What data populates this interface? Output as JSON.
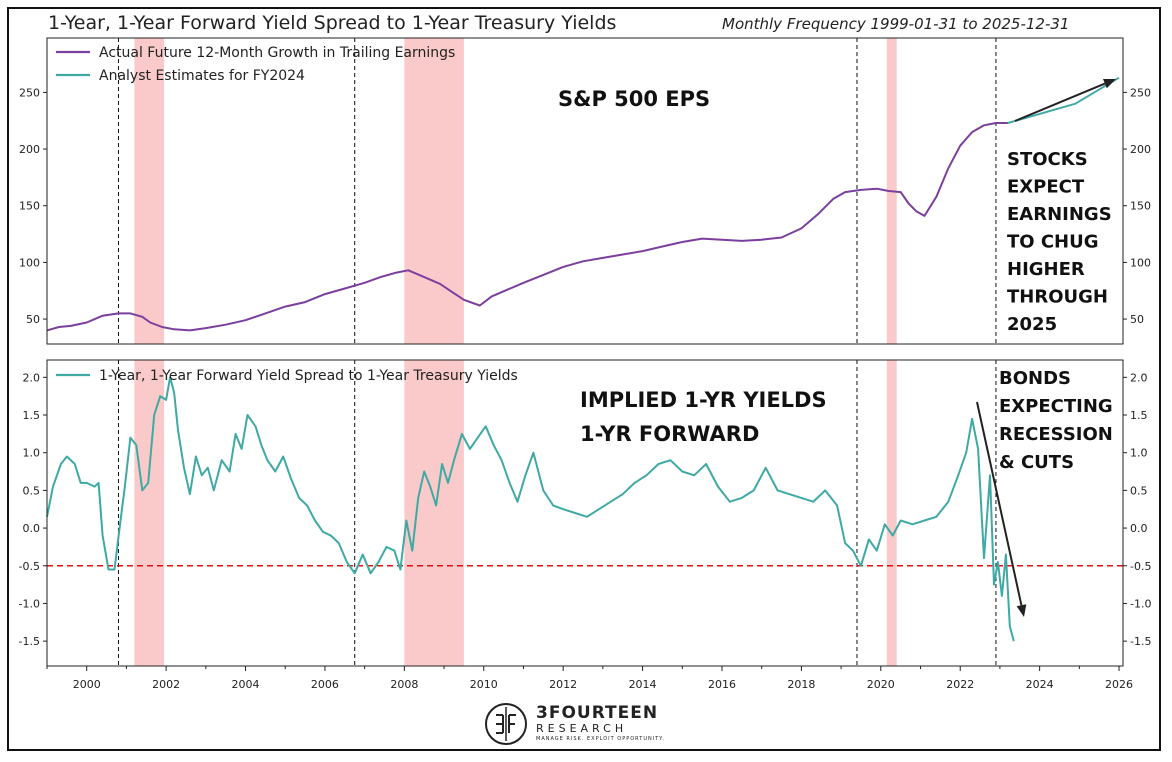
{
  "title": "1-Year, 1-Year Forward Yield Spread to 1-Year Treasury Yields",
  "subtitle": "Monthly Frequency 1999-01-31 to 2025-12-31",
  "logo": {
    "name": "3FOURTEEN",
    "sub": "RESEARCH",
    "tagline": "MANAGE RISK. EXPLOIT OPPORTUNITY."
  },
  "colors": {
    "purple": "#7b3f9e",
    "teal": "#3fa9a4",
    "recession": "#f8b4b4",
    "threshold": "#e01010"
  },
  "chart_data": [
    {
      "type": "line",
      "title": "S&P 500 EPS",
      "x_range": [
        1999.0,
        2026.1
      ],
      "ylim": [
        28,
        298
      ],
      "yticks": [
        50,
        100,
        150,
        200,
        250
      ],
      "y_axis_sides": [
        "left",
        "right"
      ],
      "legend_position": "top-left",
      "series": [
        {
          "name": "Actual Future 12-Month Growth in Trailing Earnings",
          "color": "#7b3f9e",
          "x": [
            1999.0,
            1999.3,
            1999.6,
            2000.0,
            2000.4,
            2000.8,
            2001.1,
            2001.4,
            2001.6,
            2001.9,
            2002.2,
            2002.6,
            2003.0,
            2003.5,
            2004.0,
            2004.5,
            2005.0,
            2005.5,
            2006.0,
            2006.5,
            2007.0,
            2007.4,
            2007.8,
            2008.1,
            2008.5,
            2008.9,
            2009.2,
            2009.5,
            2009.9,
            2010.2,
            2010.6,
            2011.0,
            2011.5,
            2012.0,
            2012.5,
            2013.0,
            2013.5,
            2014.0,
            2014.5,
            2015.0,
            2015.5,
            2016.0,
            2016.5,
            2017.0,
            2017.5,
            2018.0,
            2018.4,
            2018.8,
            2019.1,
            2019.5,
            2019.9,
            2020.2,
            2020.5,
            2020.7,
            2020.9,
            2021.1,
            2021.4,
            2021.7,
            2022.0,
            2022.3,
            2022.6,
            2022.9,
            2023.2
          ],
          "values": [
            40,
            43,
            44,
            47,
            53,
            55,
            55,
            52,
            47,
            43,
            41,
            40,
            42,
            45,
            49,
            55,
            61,
            65,
            72,
            77,
            82,
            87,
            91,
            93,
            87,
            81,
            74,
            67,
            62,
            70,
            76,
            82,
            89,
            96,
            101,
            104,
            107,
            110,
            114,
            118,
            121,
            120,
            119,
            120,
            122,
            130,
            142,
            156,
            162,
            164,
            165,
            163,
            162,
            152,
            145,
            141,
            158,
            183,
            203,
            215,
            221,
            223,
            223
          ]
        },
        {
          "name": "Analyst Estimates for FY2024",
          "color": "#3fa9a4",
          "x": [
            2023.2,
            2024.0,
            2024.9,
            2026.0
          ],
          "values": [
            223,
            231,
            240,
            263
          ]
        }
      ],
      "vertical_markers": [
        2000.8,
        2006.75,
        2019.4,
        2022.9
      ],
      "recession_shading": [
        [
          2001.2,
          2001.95
        ],
        [
          2008.0,
          2009.5
        ],
        [
          2020.15,
          2020.4
        ]
      ],
      "annotations": [
        "S&P 500 EPS",
        "STOCKS",
        "EXPECT",
        "EARNINGS",
        "TO CHUG",
        "HIGHER",
        "THROUGH",
        "2025"
      ]
    },
    {
      "type": "line",
      "x_range": [
        1999.0,
        2026.1
      ],
      "ylim": [
        -1.83,
        2.23
      ],
      "yticks": [
        -1.5,
        -1.0,
        -0.5,
        0.0,
        0.5,
        1.0,
        1.5,
        2.0
      ],
      "xticks": [
        2000,
        2002,
        2004,
        2006,
        2008,
        2010,
        2012,
        2014,
        2016,
        2018,
        2020,
        2022,
        2024,
        2026
      ],
      "y_axis_sides": [
        "left",
        "right"
      ],
      "legend_position": "top-left",
      "threshold": -0.5,
      "series": [
        {
          "name": "1-Year, 1-Year Forward Yield Spread to 1-Year Treasury Yields",
          "color": "#3fa9a4",
          "x": [
            1999.0,
            1999.15,
            1999.35,
            1999.5,
            1999.7,
            1999.85,
            2000.0,
            2000.2,
            2000.3,
            2000.4,
            2000.55,
            2000.7,
            2000.85,
            2000.95,
            2001.1,
            2001.25,
            2001.4,
            2001.55,
            2001.7,
            2001.85,
            2002.0,
            2002.1,
            2002.2,
            2002.3,
            2002.45,
            2002.6,
            2002.75,
            2002.9,
            2003.05,
            2003.2,
            2003.4,
            2003.6,
            2003.75,
            2003.9,
            2004.05,
            2004.25,
            2004.4,
            2004.55,
            2004.75,
            2004.95,
            2005.15,
            2005.35,
            2005.55,
            2005.75,
            2005.95,
            2006.15,
            2006.35,
            2006.55,
            2006.75,
            2006.95,
            2007.15,
            2007.35,
            2007.55,
            2007.75,
            2007.9,
            2008.05,
            2008.2,
            2008.35,
            2008.5,
            2008.65,
            2008.8,
            2008.95,
            2009.1,
            2009.25,
            2009.45,
            2009.65,
            2009.85,
            2010.05,
            2010.25,
            2010.45,
            2010.65,
            2010.85,
            2011.05,
            2011.25,
            2011.5,
            2011.75,
            2012.0,
            2012.3,
            2012.6,
            2012.9,
            2013.2,
            2013.5,
            2013.8,
            2014.1,
            2014.4,
            2014.7,
            2015.0,
            2015.3,
            2015.6,
            2015.9,
            2016.2,
            2016.5,
            2016.8,
            2017.1,
            2017.4,
            2017.7,
            2018.0,
            2018.3,
            2018.6,
            2018.9,
            2019.1,
            2019.3,
            2019.5,
            2019.7,
            2019.9,
            2020.1,
            2020.3,
            2020.5,
            2020.8,
            2021.1,
            2021.4,
            2021.7,
            2021.95,
            2022.15,
            2022.3,
            2022.45,
            2022.6,
            2022.75,
            2022.85,
            2022.95,
            2023.05,
            2023.15,
            2023.25,
            2023.35
          ],
          "values": [
            0.15,
            0.55,
            0.85,
            0.95,
            0.85,
            0.6,
            0.6,
            0.55,
            0.6,
            -0.1,
            -0.55,
            -0.55,
            0.1,
            0.5,
            1.2,
            1.1,
            0.5,
            0.6,
            1.5,
            1.75,
            1.7,
            2.0,
            1.8,
            1.3,
            0.8,
            0.45,
            0.95,
            0.7,
            0.8,
            0.5,
            0.9,
            0.75,
            1.25,
            1.05,
            1.5,
            1.35,
            1.1,
            0.9,
            0.75,
            0.95,
            0.65,
            0.4,
            0.3,
            0.1,
            -0.05,
            -0.1,
            -0.2,
            -0.45,
            -0.6,
            -0.35,
            -0.6,
            -0.45,
            -0.25,
            -0.3,
            -0.55,
            0.1,
            -0.3,
            0.4,
            0.75,
            0.55,
            0.3,
            0.85,
            0.6,
            0.9,
            1.25,
            1.05,
            1.2,
            1.35,
            1.1,
            0.9,
            0.6,
            0.35,
            0.7,
            1.0,
            0.5,
            0.3,
            0.25,
            0.2,
            0.15,
            0.25,
            0.35,
            0.45,
            0.6,
            0.7,
            0.85,
            0.9,
            0.75,
            0.7,
            0.85,
            0.55,
            0.35,
            0.4,
            0.5,
            0.8,
            0.5,
            0.45,
            0.4,
            0.35,
            0.5,
            0.3,
            -0.2,
            -0.3,
            -0.5,
            -0.15,
            -0.3,
            0.05,
            -0.1,
            0.1,
            0.05,
            0.1,
            0.15,
            0.35,
            0.7,
            1.0,
            1.45,
            1.05,
            -0.4,
            0.7,
            -0.75,
            -0.45,
            -0.9,
            -0.35,
            -1.3,
            -1.5
          ]
        }
      ],
      "vertical_markers": [
        2000.8,
        2006.75,
        2019.4,
        2022.9
      ],
      "recession_shading": [
        [
          2001.2,
          2001.95
        ],
        [
          2008.0,
          2009.5
        ],
        [
          2020.15,
          2020.4
        ]
      ],
      "annotations": [
        "IMPLIED 1-YR YIELDS",
        "1-YR FORWARD",
        "BONDS",
        "EXPECTING",
        "RECESSION",
        "& CUTS"
      ]
    }
  ]
}
